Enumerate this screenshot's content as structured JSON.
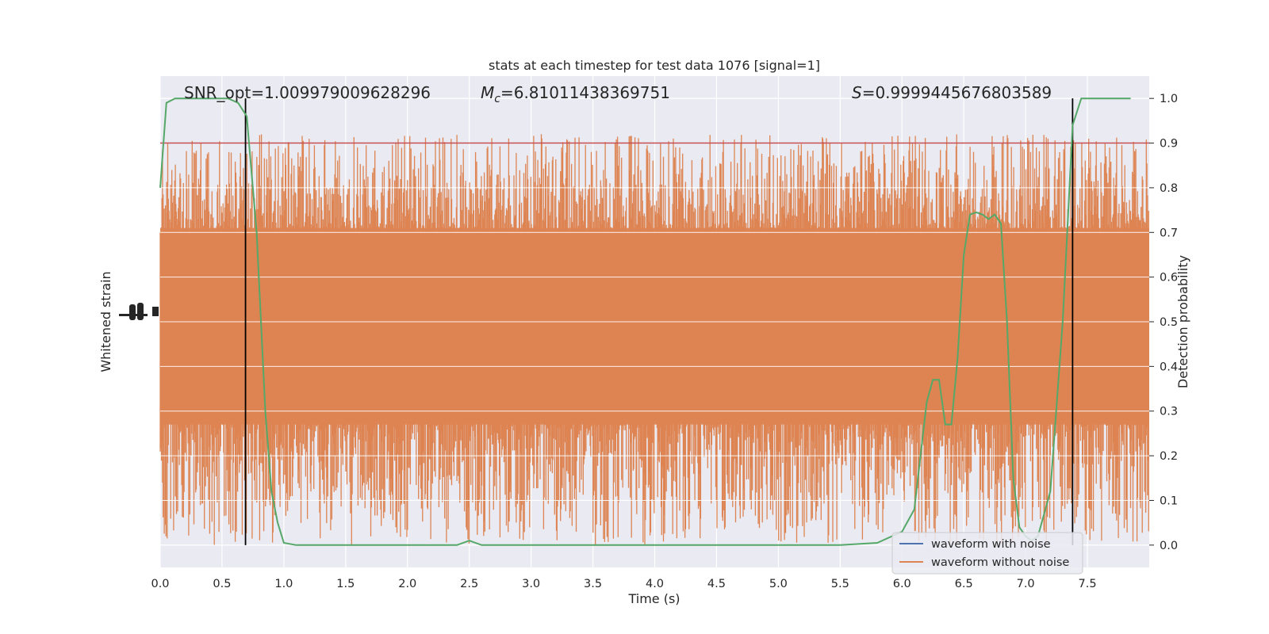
{
  "chart_data": {
    "type": "line",
    "title": "stats at each timestep for test data 1076 [signal=1]",
    "xlabel": "Time (s)",
    "ylabel_left": "Whitened strain",
    "ylabel_right": "Detection probability",
    "xlim": [
      0.0,
      8.0
    ],
    "ylim_right": [
      -0.05,
      1.05
    ],
    "x_ticks": [
      "0.0",
      "0.5",
      "1.0",
      "1.5",
      "2.0",
      "2.5",
      "3.0",
      "3.5",
      "4.0",
      "4.5",
      "5.0",
      "5.5",
      "6.0",
      "6.5",
      "7.0",
      "7.5"
    ],
    "y_ticks_right": [
      "0.0",
      "0.1",
      "0.2",
      "0.3",
      "0.4",
      "0.5",
      "0.6",
      "0.7",
      "0.8",
      "0.9",
      "1.0"
    ],
    "grid": true,
    "annotations": {
      "snr": "SNR_opt=1.009979009628296",
      "mc_symbol": "M",
      "mc_sub": "c",
      "mc_value": "=6.81011438369751",
      "s_symbol": "S",
      "s_value": "=0.9999445676803589"
    },
    "threshold": 0.9,
    "vertical_lines": [
      0.69,
      7.38
    ],
    "series": [
      {
        "name": "waveform with noise",
        "color": "#4c72b0",
        "note_values": "mostly hidden behind orange series"
      },
      {
        "name": "waveform without noise",
        "color": "#dd8452",
        "envelope_high_approx": 0.92,
        "envelope_low_approx": 0.0
      },
      {
        "name": "detection probability",
        "color": "#55a868",
        "x": [
          0.0,
          0.05,
          0.12,
          0.25,
          0.4,
          0.55,
          0.63,
          0.7,
          0.78,
          0.85,
          0.9,
          0.95,
          1.0,
          1.1,
          1.3,
          1.6,
          2.0,
          2.4,
          2.5,
          2.6,
          2.8,
          3.2,
          3.6,
          4.0,
          4.5,
          5.0,
          5.5,
          5.8,
          6.0,
          6.1,
          6.2,
          6.25,
          6.3,
          6.35,
          6.4,
          6.45,
          6.5,
          6.55,
          6.6,
          6.65,
          6.7,
          6.75,
          6.8,
          6.85,
          6.9,
          6.95,
          7.0,
          7.05,
          7.1,
          7.2,
          7.3,
          7.38,
          7.45,
          7.55,
          7.7,
          7.85
        ],
        "y": [
          0.8,
          0.99,
          1.0,
          1.0,
          1.0,
          1.0,
          0.99,
          0.96,
          0.7,
          0.3,
          0.12,
          0.05,
          0.005,
          0.0,
          0.0,
          0.0,
          0.0,
          0.0,
          0.01,
          0.0,
          0.0,
          0.0,
          0.0,
          0.0,
          0.0,
          0.0,
          0.0,
          0.005,
          0.03,
          0.08,
          0.32,
          0.37,
          0.37,
          0.27,
          0.27,
          0.42,
          0.65,
          0.74,
          0.745,
          0.74,
          0.73,
          0.74,
          0.72,
          0.5,
          0.15,
          0.04,
          0.02,
          0.01,
          0.02,
          0.12,
          0.5,
          0.94,
          1.0,
          1.0,
          1.0,
          1.0
        ]
      }
    ],
    "legend": {
      "placement": "bottom-right",
      "entries": [
        "waveform with noise",
        "waveform without noise"
      ]
    }
  }
}
